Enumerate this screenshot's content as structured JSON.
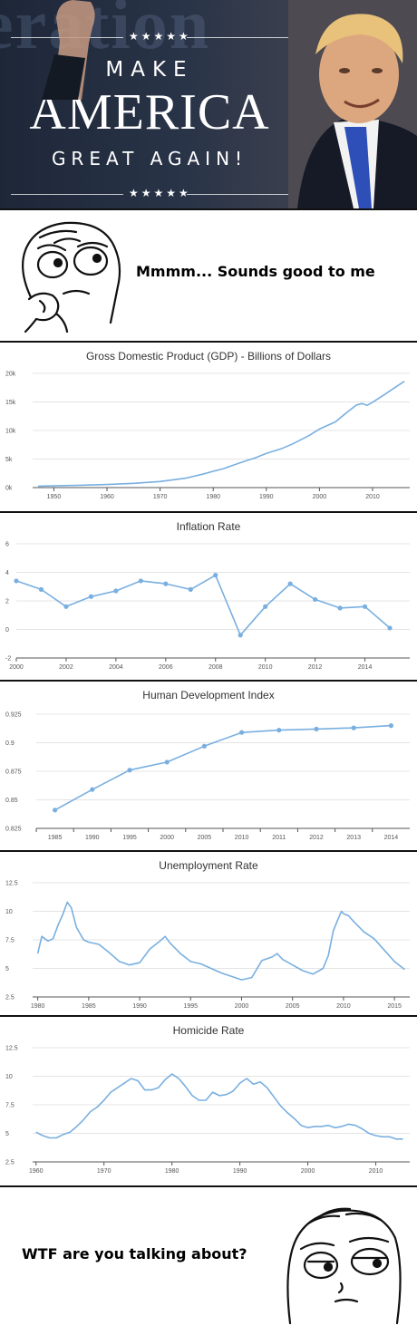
{
  "banner": {
    "stars_top": "★★★★★",
    "stars_bottom": "★★★★★",
    "line1": "MAKE",
    "line2": "AMERICA",
    "line3": "GREAT AGAIN!",
    "background_text": "eration"
  },
  "top_panel": {
    "caption": "Mmmm... Sounds good to me"
  },
  "bottom_panel": {
    "caption": "WTF are you talking about?"
  },
  "colors": {
    "line": "#79afe0",
    "grid": "#e4e4e4",
    "axis": "#555555",
    "banner_dark": "#1d2738",
    "tie": "#2f4fb8"
  },
  "chart_data": [
    {
      "type": "line",
      "title": "Gross Domestic Product (GDP) - Billions of Dollars",
      "ylim": [
        0,
        20000
      ],
      "yticks": [
        0,
        5000,
        10000,
        15000,
        20000
      ],
      "ytick_labels": [
        "0k",
        "5k",
        "10k",
        "15k",
        "20k"
      ],
      "xlim": [
        1946,
        2017
      ],
      "xticks": [
        1950,
        1960,
        1970,
        1980,
        1990,
        2000,
        2010
      ],
      "markers": false,
      "x": [
        1947,
        1950,
        1955,
        1960,
        1965,
        1970,
        1975,
        1978,
        1980,
        1982,
        1985,
        1988,
        1990,
        1993,
        1995,
        1998,
        2000,
        2003,
        2005,
        2007,
        2008,
        2009,
        2010,
        2012,
        2014,
        2016
      ],
      "values": [
        250,
        300,
        420,
        540,
        740,
        1070,
        1690,
        2350,
        2860,
        3340,
        4340,
        5240,
        5980,
        6880,
        7660,
        9090,
        10250,
        11510,
        13040,
        14480,
        14720,
        14420,
        14960,
        16150,
        17390,
        18620
      ]
    },
    {
      "type": "line",
      "title": "Inflation Rate",
      "ylim": [
        -2,
        6
      ],
      "yticks": [
        -2,
        0,
        2,
        4,
        6
      ],
      "ytick_labels": [
        "-2",
        "0",
        "2",
        "4",
        "6"
      ],
      "xlim": [
        2000,
        2015.8
      ],
      "xticks": [
        2000,
        2002,
        2004,
        2006,
        2008,
        2010,
        2012,
        2014
      ],
      "markers": true,
      "x": [
        2000,
        2001,
        2002,
        2003,
        2004,
        2005,
        2006,
        2007,
        2008,
        2009,
        2010,
        2011,
        2012,
        2013,
        2014,
        2015
      ],
      "values": [
        3.4,
        2.8,
        1.6,
        2.3,
        2.7,
        3.4,
        3.2,
        2.8,
        3.8,
        -0.4,
        1.6,
        3.2,
        2.1,
        1.5,
        1.6,
        0.1
      ]
    },
    {
      "type": "line",
      "title": "Human Development Index",
      "ylim": [
        0.825,
        0.925
      ],
      "yticks": [
        0.825,
        0.85,
        0.875,
        0.9,
        0.925
      ],
      "ytick_labels": [
        "0.825",
        "0.85",
        "0.875",
        "0.9",
        "0.925"
      ],
      "categories": [
        "1985",
        "1990",
        "1995",
        "2000",
        "2005",
        "2010",
        "2011",
        "2012",
        "2013",
        "2014"
      ],
      "markers": true,
      "values": [
        0.841,
        0.859,
        0.876,
        0.883,
        0.897,
        0.909,
        0.911,
        0.912,
        0.913,
        0.915
      ]
    },
    {
      "type": "line",
      "title": "Unemployment Rate",
      "ylim": [
        2.5,
        12.5
      ],
      "yticks": [
        2.5,
        5,
        7.5,
        10,
        12.5
      ],
      "ytick_labels": [
        "2.5",
        "5",
        "7.5",
        "10",
        "12.5"
      ],
      "xlim": [
        1979.5,
        2016.5
      ],
      "xticks": [
        1980,
        1985,
        1990,
        1995,
        2000,
        2005,
        2010,
        2015
      ],
      "markers": false,
      "x": [
        1980,
        1980.4,
        1981,
        1981.5,
        1982,
        1982.5,
        1982.9,
        1983.3,
        1983.8,
        1984.5,
        1985,
        1986,
        1987,
        1988,
        1989,
        1990,
        1991,
        1992,
        1992.5,
        1993,
        1994,
        1995,
        1996,
        1997,
        1998,
        1999,
        2000,
        2001,
        2002,
        2003,
        2003.5,
        2004,
        2005,
        2006,
        2007,
        2008,
        2008.5,
        2009,
        2009.5,
        2009.8,
        2010,
        2010.5,
        2011,
        2012,
        2013,
        2014,
        2015,
        2016
      ],
      "values": [
        6.3,
        7.8,
        7.4,
        7.6,
        8.8,
        9.8,
        10.8,
        10.3,
        8.6,
        7.5,
        7.3,
        7.1,
        6.4,
        5.6,
        5.3,
        5.5,
        6.7,
        7.4,
        7.8,
        7.2,
        6.3,
        5.6,
        5.4,
        5.0,
        4.6,
        4.3,
        4.0,
        4.2,
        5.7,
        6.0,
        6.3,
        5.8,
        5.3,
        4.8,
        4.5,
        5.0,
        6.1,
        8.3,
        9.4,
        10.0,
        9.8,
        9.6,
        9.1,
        8.2,
        7.6,
        6.6,
        5.6,
        4.9
      ]
    },
    {
      "type": "line",
      "title": "Homicide Rate",
      "ylim": [
        2.5,
        12.5
      ],
      "yticks": [
        2.5,
        5,
        7.5,
        10,
        12.5
      ],
      "ytick_labels": [
        "2.5",
        "5",
        "7.5",
        "10",
        "12.5"
      ],
      "xlim": [
        1959.5,
        2015
      ],
      "xticks": [
        1960,
        1970,
        1980,
        1990,
        2000,
        2010
      ],
      "markers": false,
      "x": [
        1960,
        1961,
        1962,
        1963,
        1964,
        1965,
        1966,
        1967,
        1968,
        1969,
        1970,
        1971,
        1972,
        1973,
        1974,
        1975,
        1976,
        1977,
        1978,
        1979,
        1980,
        1981,
        1982,
        1983,
        1984,
        1985,
        1986,
        1987,
        1988,
        1989,
        1990,
        1991,
        1992,
        1993,
        1994,
        1995,
        1996,
        1997,
        1998,
        1999,
        2000,
        2001,
        2002,
        2003,
        2004,
        2005,
        2006,
        2007,
        2008,
        2009,
        2010,
        2011,
        2012,
        2013,
        2014
      ],
      "values": [
        5.1,
        4.8,
        4.6,
        4.6,
        4.9,
        5.1,
        5.6,
        6.2,
        6.9,
        7.3,
        7.9,
        8.6,
        9.0,
        9.4,
        9.8,
        9.6,
        8.8,
        8.8,
        9.0,
        9.7,
        10.2,
        9.8,
        9.1,
        8.3,
        7.9,
        7.9,
        8.6,
        8.3,
        8.4,
        8.7,
        9.4,
        9.8,
        9.3,
        9.5,
        9.0,
        8.2,
        7.4,
        6.8,
        6.3,
        5.7,
        5.5,
        5.6,
        5.6,
        5.7,
        5.5,
        5.6,
        5.8,
        5.7,
        5.4,
        5.0,
        4.8,
        4.7,
        4.7,
        4.5,
        4.5
      ]
    }
  ]
}
